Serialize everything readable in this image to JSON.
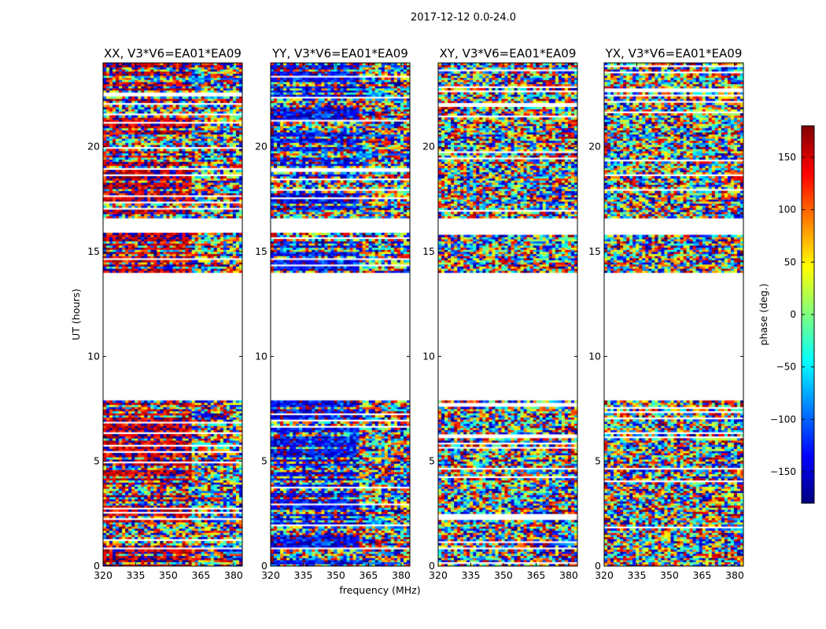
{
  "chart_data": {
    "type": "heatmap",
    "suptitle": "2017-12-12 0.0-24.0",
    "xlabel": "frequency (MHz)",
    "ylabel": "UT (hours)",
    "xlim": [
      320,
      384
    ],
    "ylim": [
      0,
      24
    ],
    "xticks": [
      320,
      335,
      350,
      365,
      380
    ],
    "yticks": [
      0,
      5,
      10,
      15,
      20
    ],
    "panels": [
      {
        "name": "xx",
        "title": "XX, V3*V6=EA01*EA09",
        "mean_phase_low_freq": 160
      },
      {
        "name": "yy",
        "title": "YY, V3*V6=EA01*EA09",
        "mean_phase_low_freq": -140
      },
      {
        "name": "xy",
        "title": "XY, V3*V6=EA01*EA09",
        "mean_phase_low_freq": null
      },
      {
        "name": "yx",
        "title": "YX, V3*V6=EA01*EA09",
        "mean_phase_low_freq": null
      }
    ],
    "flagged_ut_ranges": [
      [
        7.8,
        13.9
      ],
      [
        15.8,
        16.5
      ]
    ],
    "colorbar": {
      "label": "phase (deg.)",
      "range": [
        -180,
        180
      ],
      "ticks": [
        -150,
        -100,
        -50,
        0,
        50,
        100,
        150
      ],
      "tick_labels": [
        "−150",
        "−100",
        "−50",
        "0",
        "50",
        "100",
        "150"
      ],
      "colormap": [
        "#00007f",
        "#0000ff",
        "#007fff",
        "#00ffff",
        "#7fff7f",
        "#ffff00",
        "#ff7f00",
        "#ff0000",
        "#7f0000"
      ]
    }
  }
}
